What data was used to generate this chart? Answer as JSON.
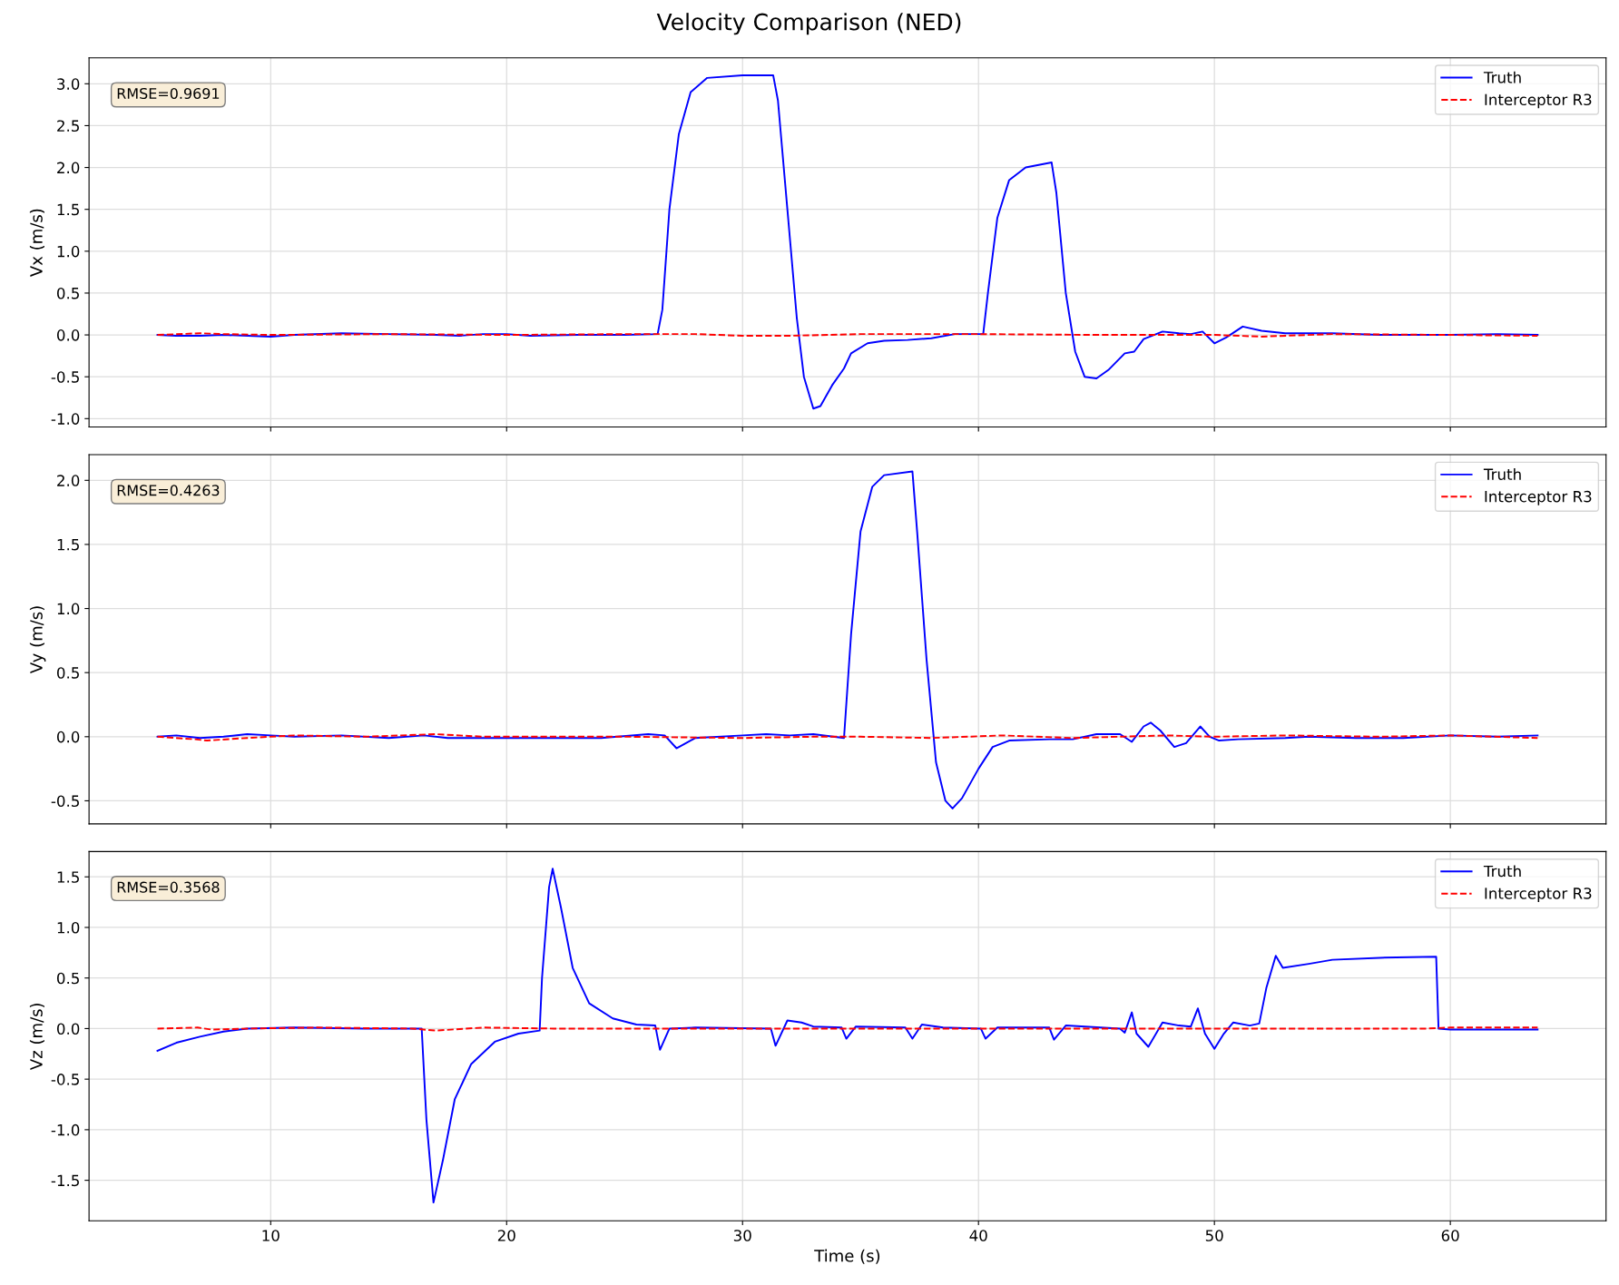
{
  "chart_data": [
    {
      "type": "line",
      "title": "Velocity Comparison (NED)",
      "ylabel": "Vx (m/s)",
      "annotations": [
        "RMSE=0.9691"
      ],
      "xlim": [
        2.3,
        66.6
      ],
      "xticks": [
        10,
        20,
        30,
        40,
        50,
        60
      ],
      "ylim": [
        -1.1,
        3.31
      ],
      "yticks": [
        {
          "value": -1,
          "label": "-1.0"
        },
        {
          "value": -0.5,
          "label": "-0.5"
        },
        {
          "value": 0,
          "label": "0.0"
        },
        {
          "value": 0.5,
          "label": "0.5"
        },
        {
          "value": 1,
          "label": "1.0"
        },
        {
          "value": 1.5,
          "label": "1.5"
        },
        {
          "value": 2,
          "label": "2.0"
        },
        {
          "value": 2.5,
          "label": "2.5"
        },
        {
          "value": 3,
          "label": "3.0"
        }
      ],
      "tick_labels": "y",
      "grid": true,
      "legend": "top right",
      "series": [
        {
          "name": "Truth",
          "color": "#0000ff",
          "line_style": "solid",
          "x": [
            5.2,
            6,
            7,
            8,
            10,
            11,
            13,
            15,
            17,
            18,
            19,
            20,
            21,
            23,
            25,
            26.4,
            26.6,
            26.9,
            27.3,
            27.8,
            28.5,
            30,
            31.3,
            31.5,
            31.9,
            32.3,
            32.6,
            33,
            33.3,
            33.8,
            34.3,
            34.6,
            35.3,
            36,
            37,
            38,
            39,
            40.2,
            40.4,
            40.8,
            41.3,
            42,
            43.1,
            43.3,
            43.7,
            44.1,
            44.5,
            45,
            45.5,
            46.2,
            46.6,
            47,
            47.8,
            48.5,
            49,
            49.5,
            50,
            50.5,
            51.2,
            52,
            53,
            55,
            57,
            60,
            62,
            63.7
          ],
          "values": [
            0,
            -0.01,
            -0.01,
            0,
            -0.02,
            0,
            0.02,
            0.01,
            0,
            -0.01,
            0.01,
            0.01,
            -0.01,
            0,
            0,
            0.01,
            0.3,
            1.5,
            2.4,
            2.9,
            3.07,
            3.1,
            3.1,
            2.8,
            1.5,
            0.2,
            -0.5,
            -0.88,
            -0.85,
            -0.6,
            -0.4,
            -0.22,
            -0.1,
            -0.07,
            -0.06,
            -0.04,
            0.01,
            0.01,
            0.5,
            1.4,
            1.85,
            2.0,
            2.06,
            1.7,
            0.5,
            -0.2,
            -0.5,
            -0.52,
            -0.42,
            -0.22,
            -0.2,
            -0.05,
            0.04,
            0.02,
            0.01,
            0.04,
            -0.1,
            -0.03,
            0.1,
            0.05,
            0.02,
            0.02,
            0,
            0,
            0.01,
            0
          ]
        },
        {
          "name": "Interceptor R3",
          "color": "#ff0000",
          "line_style": "dashed",
          "x": [
            5.2,
            7,
            8,
            10,
            15,
            20,
            25,
            28,
            30,
            32,
            35,
            38,
            40,
            45,
            50,
            52,
            55,
            60,
            63.7
          ],
          "values": [
            0,
            0.02,
            0.01,
            0,
            0.01,
            0,
            0.01,
            0.01,
            -0.01,
            -0.01,
            0.01,
            0.01,
            0.01,
            0,
            0,
            -0.02,
            0.01,
            0,
            -0.01
          ]
        }
      ]
    },
    {
      "type": "line",
      "ylabel": "Vy (m/s)",
      "annotations": [
        "RMSE=0.4263"
      ],
      "xlim": [
        2.3,
        66.6
      ],
      "xticks": [
        10,
        20,
        30,
        40,
        50,
        60
      ],
      "ylim": [
        -0.68,
        2.2
      ],
      "yticks": [
        {
          "value": -0.5,
          "label": "-0.5"
        },
        {
          "value": 0,
          "label": "0.0"
        },
        {
          "value": 0.5,
          "label": "0.5"
        },
        {
          "value": 1,
          "label": "1.0"
        },
        {
          "value": 1.5,
          "label": "1.5"
        },
        {
          "value": 2,
          "label": "2.0"
        }
      ],
      "tick_labels": "y",
      "grid": true,
      "legend": "top right",
      "series": [
        {
          "name": "Truth",
          "color": "#0000ff",
          "line_style": "solid",
          "x": [
            5.2,
            6,
            7,
            8,
            9,
            10,
            11,
            13,
            15,
            16.5,
            17.5,
            19,
            21,
            24,
            26,
            26.7,
            27.2,
            28,
            30,
            31,
            32,
            33,
            34.3,
            34.6,
            35,
            35.5,
            36,
            37.2,
            37.4,
            37.8,
            38.2,
            38.6,
            38.9,
            39.3,
            40,
            40.6,
            41.3,
            43,
            44,
            45,
            46,
            46.5,
            47,
            47.3,
            47.7,
            48.3,
            48.8,
            49.4,
            49.8,
            50.2,
            51,
            53,
            54,
            56,
            58,
            60,
            62,
            63.7
          ],
          "values": [
            0,
            0.01,
            -0.01,
            0,
            0.02,
            0.01,
            0,
            0.01,
            -0.01,
            0.01,
            -0.01,
            -0.01,
            -0.01,
            -0.01,
            0.02,
            0.01,
            -0.09,
            -0.01,
            0.01,
            0.02,
            0.01,
            0.02,
            -0.01,
            0.8,
            1.6,
            1.95,
            2.04,
            2.07,
            1.6,
            0.6,
            -0.2,
            -0.5,
            -0.56,
            -0.48,
            -0.25,
            -0.08,
            -0.03,
            -0.02,
            -0.02,
            0.02,
            0.02,
            -0.04,
            0.08,
            0.11,
            0.05,
            -0.08,
            -0.05,
            0.08,
            0,
            -0.03,
            -0.02,
            -0.01,
            0,
            -0.01,
            -0.01,
            0.01,
            0,
            0.01
          ]
        },
        {
          "name": "Interceptor R3",
          "color": "#ff0000",
          "line_style": "dashed",
          "x": [
            5.2,
            6.8,
            7.3,
            9,
            11,
            14,
            17,
            19,
            25,
            30,
            33,
            35,
            38,
            41,
            44,
            48,
            50,
            53,
            57,
            60,
            63.7
          ],
          "values": [
            0,
            -0.02,
            -0.03,
            -0.01,
            0.01,
            0,
            0.02,
            0,
            0,
            -0.01,
            0,
            0,
            -0.01,
            0.01,
            -0.01,
            0.01,
            0,
            0.01,
            0,
            0.01,
            -0.01
          ]
        }
      ]
    },
    {
      "type": "line",
      "xlabel": "Time (s)",
      "ylabel": "Vz (m/s)",
      "annotations": [
        "RMSE=0.3568"
      ],
      "xlim": [
        2.3,
        66.6
      ],
      "xticks": [
        10,
        20,
        30,
        40,
        50,
        60
      ],
      "ylim": [
        -1.9,
        1.75
      ],
      "yticks": [
        {
          "value": -1.5,
          "label": "-1.5"
        },
        {
          "value": -1,
          "label": "-1.0"
        },
        {
          "value": -0.5,
          "label": "-0.5"
        },
        {
          "value": 0,
          "label": "0.0"
        },
        {
          "value": 0.5,
          "label": "0.5"
        },
        {
          "value": 1,
          "label": "1.0"
        },
        {
          "value": 1.5,
          "label": "1.5"
        }
      ],
      "grid": true,
      "legend": "top right",
      "series": [
        {
          "name": "Truth",
          "color": "#0000ff",
          "line_style": "solid",
          "x": [
            5.2,
            6,
            7,
            8,
            9,
            11,
            14,
            16.4,
            16.6,
            16.9,
            17.3,
            17.8,
            18.5,
            19.5,
            20.5,
            21.4,
            21.5,
            21.8,
            21.95,
            22.3,
            22.8,
            23.5,
            24.5,
            25.5,
            26.3,
            26.5,
            26.9,
            28,
            31.2,
            31.4,
            31.9,
            32.5,
            33,
            34.2,
            34.4,
            34.8,
            36.9,
            37.2,
            37.6,
            38.5,
            40.1,
            40.3,
            40.8,
            43,
            43.2,
            43.7,
            46,
            46.2,
            46.5,
            46.7,
            47.2,
            47.8,
            48.5,
            49,
            49.3,
            49.6,
            50,
            50.4,
            50.8,
            51.5,
            51.9,
            52.2,
            52.6,
            52.9,
            54,
            55,
            57,
            59.4,
            59.5,
            60,
            63.7
          ],
          "values": [
            -0.22,
            -0.14,
            -0.08,
            -0.03,
            0,
            0.01,
            0,
            0,
            -0.9,
            -1.72,
            -1.3,
            -0.7,
            -0.35,
            -0.13,
            -0.05,
            -0.02,
            0.5,
            1.4,
            1.58,
            1.2,
            0.6,
            0.25,
            0.1,
            0.04,
            0.03,
            -0.21,
            0,
            0.01,
            0,
            -0.17,
            0.08,
            0.06,
            0.02,
            0.01,
            -0.1,
            0.02,
            0.01,
            -0.1,
            0.04,
            0.01,
            0,
            -0.1,
            0.01,
            0.01,
            -0.11,
            0.03,
            0,
            -0.04,
            0.16,
            -0.05,
            -0.18,
            0.06,
            0.03,
            0.02,
            0.2,
            -0.05,
            -0.2,
            -0.05,
            0.06,
            0.03,
            0.05,
            0.4,
            0.72,
            0.6,
            0.64,
            0.68,
            0.7,
            0.71,
            0,
            -0.01,
            -0.01
          ]
        },
        {
          "name": "Interceptor R3",
          "color": "#ff0000",
          "line_style": "dashed",
          "x": [
            5.2,
            6.9,
            7.5,
            9,
            12,
            16,
            17,
            19,
            22,
            30,
            40,
            50,
            59,
            60,
            63.7
          ],
          "values": [
            0,
            0.01,
            -0.01,
            0,
            0.01,
            0,
            -0.02,
            0.01,
            0,
            0,
            0,
            0,
            0,
            0.01,
            0.01
          ]
        }
      ]
    }
  ]
}
